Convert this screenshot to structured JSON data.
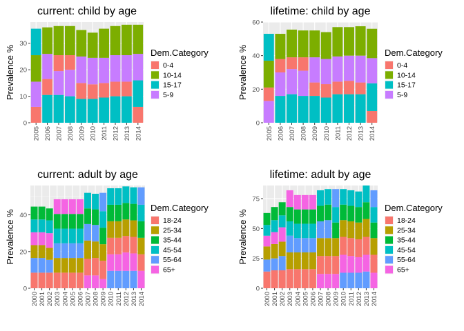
{
  "chart_data": [
    {
      "type": "bar",
      "stacked": true,
      "title": "current: child by age",
      "ylabel": "Prevalence %",
      "xlabel": "",
      "ylim": [
        0,
        38
      ],
      "yticks": [
        0,
        10,
        20,
        30
      ],
      "grid": true,
      "legend_title": "Dem.Category",
      "legend_position": "right",
      "categories": [
        "2005",
        "2006",
        "2007",
        "2008",
        "2009",
        "2010",
        "2011",
        "2012",
        "2013",
        "2014"
      ],
      "series": [
        {
          "name": "0-4",
          "color": "#F8766D",
          "values": [
            6,
            6,
            6,
            5.5,
            6,
            5.5,
            5.5,
            5.5,
            5.5,
            6
          ]
        },
        {
          "name": "10-14",
          "color": "#7CAE00",
          "values": [
            10,
            10,
            11,
            11,
            10,
            9.5,
            11,
            11,
            11.5,
            11
          ]
        },
        {
          "name": "15-17",
          "color": "#00BFC4",
          "values": [
            10,
            10.5,
            10.5,
            10,
            9,
            9,
            9.5,
            10,
            10,
            10
          ]
        },
        {
          "name": "5-9",
          "color": "#C77CFF",
          "values": [
            9.5,
            9.5,
            9,
            10,
            10,
            10,
            9.5,
            10,
            10,
            10
          ]
        }
      ],
      "stack_orders": [
        [
          "0-4",
          "5-9",
          "10-14",
          "15-17"
        ],
        [
          "15-17",
          "0-4",
          "5-9",
          "10-14"
        ],
        [
          "15-17",
          "5-9",
          "0-4",
          "10-14"
        ],
        [
          "15-17",
          "5-9",
          "0-4",
          "10-14"
        ],
        [
          "15-17",
          "0-4",
          "5-9",
          "10-14"
        ],
        [
          "15-17",
          "0-4",
          "5-9",
          "10-14"
        ],
        [
          "15-17",
          "0-4",
          "5-9",
          "10-14"
        ],
        [
          "15-17",
          "0-4",
          "5-9",
          "10-14"
        ],
        [
          "15-17",
          "0-4",
          "5-9",
          "10-14"
        ],
        [
          "0-4",
          "15-17",
          "5-9",
          "10-14"
        ]
      ]
    },
    {
      "type": "bar",
      "stacked": true,
      "title": "lifetime: child by age",
      "ylabel": "Prevalence %",
      "xlabel": "",
      "ylim": [
        0,
        60
      ],
      "yticks": [
        0,
        20,
        40,
        60
      ],
      "grid": true,
      "legend_title": "Dem.Category",
      "legend_position": "right",
      "categories": [
        "2005",
        "2006",
        "2007",
        "2008",
        "2009",
        "2010",
        "2011",
        "2012",
        "2013",
        "2014"
      ],
      "series": [
        {
          "name": "0-4",
          "color": "#F8766D",
          "values": [
            8,
            8,
            7,
            8,
            8,
            8,
            7.5,
            8,
            7,
            7
          ]
        },
        {
          "name": "10-14",
          "color": "#7CAE00",
          "values": [
            16,
            15,
            16.5,
            16,
            16,
            16,
            17.5,
            17,
            17.5,
            17.5
          ]
        },
        {
          "name": "15-17",
          "color": "#00BFC4",
          "values": [
            16,
            16,
            17,
            16,
            16,
            15,
            17,
            17,
            17,
            16.5
          ]
        },
        {
          "name": "5-9",
          "color": "#C77CFF",
          "values": [
            13,
            14,
            15,
            15,
            15,
            15,
            15,
            15,
            16,
            15
          ]
        }
      ],
      "stack_orders": [
        [
          "5-9",
          "0-4",
          "10-14",
          "15-17"
        ],
        [
          "15-17",
          "5-9",
          "0-4",
          "10-14"
        ],
        [
          "15-17",
          "5-9",
          "0-4",
          "10-14"
        ],
        [
          "15-17",
          "5-9",
          "0-4",
          "10-14"
        ],
        [
          "15-17",
          "0-4",
          "5-9",
          "10-14"
        ],
        [
          "15-17",
          "0-4",
          "5-9",
          "10-14"
        ],
        [
          "15-17",
          "0-4",
          "5-9",
          "10-14"
        ],
        [
          "15-17",
          "0-4",
          "5-9",
          "10-14"
        ],
        [
          "15-17",
          "0-4",
          "5-9",
          "10-14"
        ],
        [
          "0-4",
          "15-17",
          "5-9",
          "10-14"
        ]
      ]
    },
    {
      "type": "bar",
      "stacked": true,
      "title": "current: adult by age",
      "ylabel": "Prevalence %",
      "xlabel": "",
      "ylim": [
        0,
        56
      ],
      "yticks": [
        0,
        20,
        40
      ],
      "grid": true,
      "legend_title": "Dem.Category",
      "legend_position": "right",
      "categories": [
        "2000",
        "2001",
        "2002",
        "2003",
        "2004",
        "2005",
        "2006",
        "2007",
        "2008",
        "2009",
        "2010",
        "2011",
        "2012",
        "2013",
        "2014"
      ],
      "series": [
        {
          "name": "18-24",
          "color": "#F8766D",
          "values": [
            8.5,
            8.5,
            8.5,
            8.5,
            8.5,
            8.5,
            8.5,
            9,
            9.5,
            10,
            9,
            9,
            9,
            9,
            9
          ]
        },
        {
          "name": "25-34",
          "color": "#B79F00",
          "values": [
            7,
            7,
            6.5,
            8,
            8,
            8,
            8,
            10,
            9,
            9,
            9,
            9,
            9,
            9,
            9
          ]
        },
        {
          "name": "35-44",
          "color": "#00BA38",
          "values": [
            7,
            7,
            6.5,
            8,
            8,
            8,
            8,
            8.5,
            8.5,
            9,
            9,
            9,
            9,
            9,
            9
          ]
        },
        {
          "name": "45-54",
          "color": "#00BFC4",
          "values": [
            7,
            7,
            7,
            8,
            8,
            8,
            8,
            8.5,
            8.5,
            9,
            9,
            9,
            9,
            9,
            9
          ]
        },
        {
          "name": "55-64",
          "color": "#619CFF",
          "values": [
            8,
            8,
            7,
            8,
            8,
            8,
            8,
            9,
            9,
            10,
            9.5,
            9.5,
            9.5,
            9.5,
            9.5
          ]
        },
        {
          "name": "65+",
          "color": "#F564E3",
          "values": [
            7,
            7,
            8,
            8,
            8,
            8,
            8,
            7,
            7,
            5,
            9,
            9,
            10,
            9.5,
            9.5
          ]
        }
      ],
      "stack_orders": [
        [
          "18-24",
          "55-64",
          "25-34",
          "65+",
          "45-54",
          "35-44"
        ],
        [
          "18-24",
          "55-64",
          "25-34",
          "65+",
          "45-54",
          "35-44"
        ],
        [
          "18-24",
          "55-64",
          "25-34",
          "65+",
          "45-54",
          "35-44"
        ],
        [
          "18-24",
          "25-34",
          "55-64",
          "45-54",
          "35-44",
          "65+"
        ],
        [
          "18-24",
          "25-34",
          "55-64",
          "45-54",
          "35-44",
          "65+"
        ],
        [
          "18-24",
          "25-34",
          "55-64",
          "45-54",
          "35-44",
          "65+"
        ],
        [
          "18-24",
          "25-34",
          "55-64",
          "45-54",
          "35-44",
          "65+"
        ],
        [
          "65+",
          "18-24",
          "25-34",
          "55-64",
          "35-44",
          "45-54"
        ],
        [
          "65+",
          "18-24",
          "25-34",
          "55-64",
          "35-44",
          "45-54"
        ],
        [
          "65+",
          "18-24",
          "25-34",
          "35-44",
          "45-54",
          "55-64"
        ],
        [
          "55-64",
          "65+",
          "18-24",
          "25-34",
          "35-44",
          "45-54"
        ],
        [
          "55-64",
          "65+",
          "18-24",
          "25-34",
          "35-44",
          "45-54"
        ],
        [
          "55-64",
          "65+",
          "18-24",
          "25-34",
          "35-44",
          "45-54"
        ],
        [
          "55-64",
          "65+",
          "18-24",
          "25-34",
          "35-44",
          "45-54"
        ],
        [
          "65+",
          "18-24",
          "25-34",
          "35-44",
          "45-54",
          "55-64"
        ]
      ]
    },
    {
      "type": "bar",
      "stacked": true,
      "title": "lifetime: adult by age",
      "ylabel": "Prevalence %",
      "xlabel": "",
      "ylim": [
        0,
        86
      ],
      "yticks": [
        0,
        25,
        50,
        75
      ],
      "grid": true,
      "legend_title": "Dem.Category",
      "legend_position": "right",
      "categories": [
        "2000",
        "2001",
        "2002",
        "2003",
        "2004",
        "2005",
        "2006",
        "2007",
        "2008",
        "2009",
        "2010",
        "2011",
        "2012",
        "2013",
        "2014"
      ],
      "series": [
        {
          "name": "18-24",
          "color": "#F8766D",
          "values": [
            14,
            15,
            15,
            16,
            16,
            16,
            16,
            15,
            15,
            15,
            15,
            15,
            15,
            15,
            15
          ]
        },
        {
          "name": "25-34",
          "color": "#B79F00",
          "values": [
            11,
            12,
            12,
            14,
            14,
            14,
            14,
            15,
            15,
            15,
            14,
            14,
            14,
            15,
            14
          ]
        },
        {
          "name": "35-44",
          "color": "#00BA38",
          "values": [
            10,
            11,
            11,
            12,
            12,
            12,
            12,
            13,
            13,
            13,
            13,
            13,
            13,
            14,
            13
          ]
        },
        {
          "name": "45-54",
          "color": "#00BFC4",
          "values": [
            9,
            10,
            10,
            12,
            12,
            12,
            12,
            13,
            13,
            13,
            13,
            13,
            13,
            14,
            13
          ]
        },
        {
          "name": "55-64",
          "color": "#619CFF",
          "values": [
            10,
            10,
            12,
            14,
            12,
            12,
            12,
            14,
            15,
            15,
            13,
            13,
            13,
            14,
            14
          ]
        },
        {
          "name": "65+",
          "color": "#F564E3",
          "values": [
            9,
            10,
            12,
            14,
            12,
            12,
            12,
            12,
            12,
            12,
            15,
            14,
            13,
            14,
            13
          ]
        }
      ],
      "stack_orders": [
        [
          "18-24",
          "55-64",
          "25-34",
          "65+",
          "45-54",
          "35-44"
        ],
        [
          "18-24",
          "55-64",
          "25-34",
          "65+",
          "45-54",
          "35-44"
        ],
        [
          "18-24",
          "55-64",
          "25-34",
          "65+",
          "45-54",
          "35-44"
        ],
        [
          "18-24",
          "25-34",
          "55-64",
          "45-54",
          "35-44",
          "65+"
        ],
        [
          "18-24",
          "25-34",
          "55-64",
          "45-54",
          "35-44",
          "65+"
        ],
        [
          "18-24",
          "25-34",
          "55-64",
          "45-54",
          "35-44",
          "65+"
        ],
        [
          "18-24",
          "25-34",
          "55-64",
          "45-54",
          "35-44",
          "65+"
        ],
        [
          "65+",
          "18-24",
          "25-34",
          "55-64",
          "35-44",
          "45-54"
        ],
        [
          "65+",
          "18-24",
          "25-34",
          "55-64",
          "35-44",
          "45-54"
        ],
        [
          "65+",
          "18-24",
          "25-34",
          "35-44",
          "45-54",
          "55-64"
        ],
        [
          "55-64",
          "65+",
          "18-24",
          "25-34",
          "35-44",
          "45-54"
        ],
        [
          "55-64",
          "65+",
          "18-24",
          "25-34",
          "35-44",
          "45-54"
        ],
        [
          "55-64",
          "65+",
          "18-24",
          "25-34",
          "35-44",
          "45-54"
        ],
        [
          "55-64",
          "65+",
          "18-24",
          "25-34",
          "35-44",
          "45-54"
        ],
        [
          "65+",
          "18-24",
          "25-34",
          "35-44",
          "45-54",
          "55-64"
        ]
      ]
    }
  ]
}
